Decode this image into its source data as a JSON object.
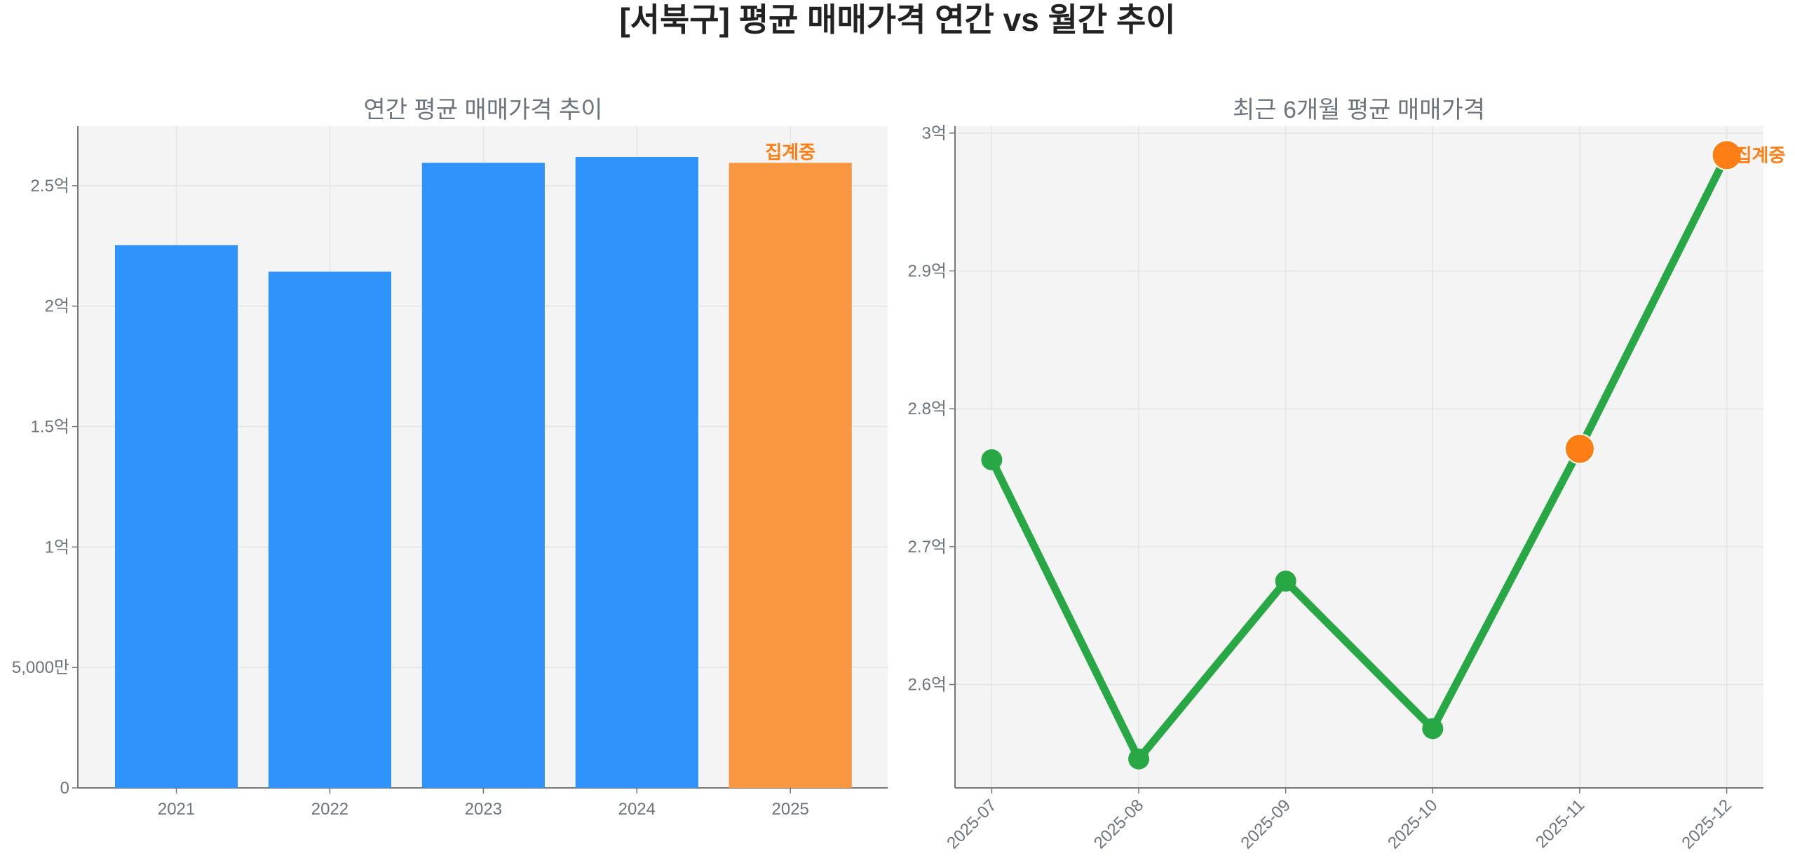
{
  "title": "[서북구] 평균 매매가격 연간 vs 월간 추이",
  "colors": {
    "bar": "#3093fb",
    "bar_current": "#f99740",
    "line": "#28a745",
    "point_current": "#fd7e14",
    "annotation": "#fd7e14",
    "axes_bg": "#f4f4f4",
    "grid": "#e4e4e4",
    "text": "#6c757d"
  },
  "chart_data": [
    {
      "type": "bar",
      "title": "연간 평균 매매가격 추이",
      "categories": [
        "2021",
        "2022",
        "2023",
        "2024",
        "2025"
      ],
      "values": [
        225300000,
        214300000,
        259500000,
        261900000,
        259500000
      ],
      "highlight": [
        false,
        false,
        false,
        false,
        true
      ],
      "annotations": [
        {
          "category": "2025",
          "text": "집계중"
        }
      ],
      "ylim": [
        0,
        274700000
      ],
      "yticks": [
        0,
        50000000,
        100000000,
        150000000,
        200000000,
        250000000
      ],
      "ytick_labels": [
        "0",
        "5,000만",
        "1억",
        "1.5억",
        "2억",
        "2.5억"
      ],
      "grid": true
    },
    {
      "type": "line",
      "title": "최근 6개월 평균 매매가격",
      "categories": [
        "2025-07",
        "2025-08",
        "2025-09",
        "2025-10",
        "2025-11",
        "2025-12"
      ],
      "values": [
        276300000,
        254600000,
        267500000,
        256800000,
        277100000,
        298400000
      ],
      "highlight": [
        false,
        false,
        false,
        false,
        true,
        true
      ],
      "annotations": [
        {
          "category": "2025-12",
          "text": "집계중"
        }
      ],
      "ylim": [
        252500000,
        300500000
      ],
      "yticks": [
        260000000,
        270000000,
        280000000,
        290000000,
        300000000
      ],
      "ytick_labels": [
        "2.6억",
        "2.7억",
        "2.8억",
        "2.9억",
        "3억"
      ],
      "xtick_rotation": 45,
      "grid": true
    }
  ]
}
